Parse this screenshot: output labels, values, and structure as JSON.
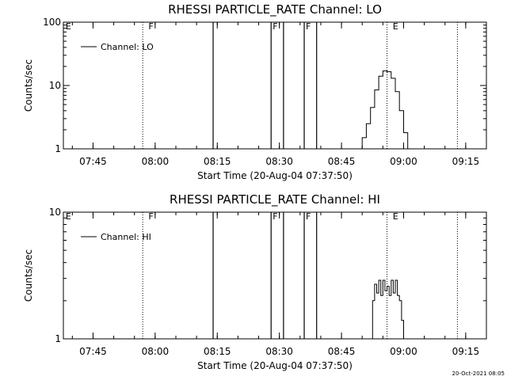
{
  "chart_data": [
    {
      "type": "line",
      "title": "RHESSI PARTICLE_RATE Channel: LO",
      "xlabel": "Start Time (20-Aug-04 07:37:50)",
      "ylabel": "Counts/sec",
      "y_scale": "log",
      "ylim": [
        1,
        100
      ],
      "ytick_labels": [
        "1",
        "10",
        "100"
      ],
      "xlim": [
        "07:37:50",
        "09:20:00"
      ],
      "xtick_labels": [
        "07:45",
        "08:00",
        "08:15",
        "08:30",
        "08:45",
        "09:00",
        "09:15"
      ],
      "legend": {
        "placement": "top-left",
        "entry": "Channel: LO"
      },
      "solid_markers": [
        "08:14",
        "08:28",
        "08:31",
        "08:36",
        "08:39"
      ],
      "dotted_markers": [
        "07:57",
        "08:56",
        "09:13"
      ],
      "flag_labels": [
        {
          "text": "E",
          "time": "07:38"
        },
        {
          "text": "F",
          "time": "07:58"
        },
        {
          "text": "F",
          "time": "08:28"
        },
        {
          "text": "F",
          "time": "08:36"
        },
        {
          "text": "E",
          "time": "08:57"
        }
      ],
      "series": [
        {
          "x": [
            "08:49:00",
            "08:50:00",
            "08:51:00",
            "08:52:00",
            "08:53:00",
            "08:54:00",
            "08:55:00",
            "08:56:00",
            "08:57:00",
            "08:58:00",
            "08:59:00",
            "09:00:00",
            "09:01:00"
          ],
          "values": [
            1.0,
            1.5,
            2.5,
            4.5,
            8.5,
            14,
            17,
            16.5,
            13,
            8,
            4,
            1.8,
            1.0
          ]
        }
      ]
    },
    {
      "type": "line",
      "title": "RHESSI PARTICLE_RATE Channel: HI",
      "xlabel": "Start Time (20-Aug-04 07:37:50)",
      "ylabel": "Counts/sec",
      "y_scale": "log",
      "ylim": [
        1,
        10
      ],
      "ytick_labels": [
        "1",
        "10"
      ],
      "xlim": [
        "07:37:50",
        "09:20:00"
      ],
      "xtick_labels": [
        "07:45",
        "08:00",
        "08:15",
        "08:30",
        "08:45",
        "09:00",
        "09:15"
      ],
      "legend": {
        "placement": "top-left",
        "entry": "Channel: HI"
      },
      "solid_markers": [
        "08:14",
        "08:28",
        "08:31",
        "08:36",
        "08:39"
      ],
      "dotted_markers": [
        "07:57",
        "08:56",
        "09:13"
      ],
      "flag_labels": [
        {
          "text": "E",
          "time": "07:38"
        },
        {
          "text": "F",
          "time": "07:58"
        },
        {
          "text": "F",
          "time": "08:28"
        },
        {
          "text": "F",
          "time": "08:36"
        },
        {
          "text": "E",
          "time": "08:57"
        }
      ],
      "series": [
        {
          "x": [
            "08:52:00",
            "08:52:30",
            "08:53:00",
            "08:53:30",
            "08:54:00",
            "08:54:30",
            "08:55:00",
            "08:55:30",
            "08:56:00",
            "08:56:30",
            "08:57:00",
            "08:57:30",
            "08:58:00",
            "08:58:30",
            "08:59:00",
            "08:59:30",
            "09:00:00"
          ],
          "values": [
            1.0,
            2.0,
            2.7,
            2.3,
            2.9,
            2.2,
            2.9,
            2.4,
            2.6,
            2.2,
            2.9,
            2.3,
            2.9,
            2.2,
            2.0,
            1.4,
            1.0
          ]
        }
      ]
    }
  ],
  "footer": {
    "timestamp": "20-Oct-2021 08:05"
  }
}
